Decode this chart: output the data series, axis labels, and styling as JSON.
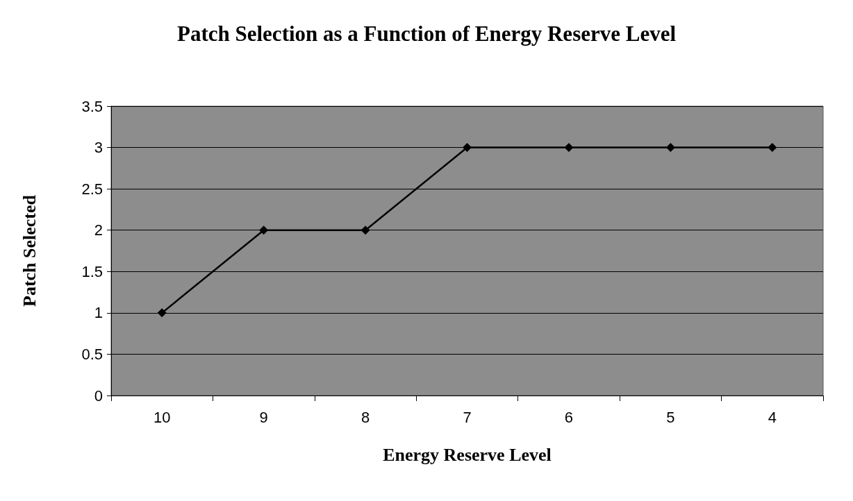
{
  "chart_data": {
    "type": "line",
    "title": "Patch Selection as a Function of Energy Reserve Level",
    "xlabel": "Energy Reserve Level",
    "ylabel": "Patch Selected",
    "categories": [
      "10",
      "9",
      "8",
      "7",
      "6",
      "5",
      "4"
    ],
    "series": [
      {
        "color": "#000000",
        "values": [
          1,
          2,
          2,
          3,
          3,
          3,
          3
        ]
      }
    ],
    "ylim": [
      0,
      3.5
    ],
    "yticks": [
      0,
      0.5,
      1,
      1.5,
      2,
      2.5,
      3,
      3.5
    ],
    "grid": "y",
    "marker": "diamond",
    "line_style": "solid"
  }
}
